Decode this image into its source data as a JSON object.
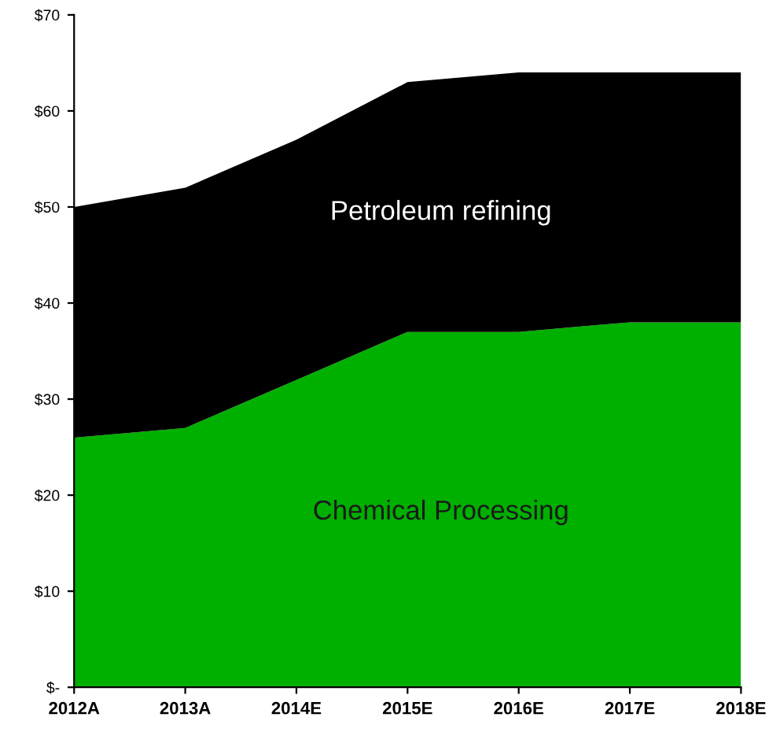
{
  "chart_data": {
    "type": "area",
    "stacked": true,
    "categories": [
      "2012A",
      "2013A",
      "2014E",
      "2015E",
      "2016E",
      "2017E",
      "2018E"
    ],
    "series": [
      {
        "name": "Chemical Processing",
        "color": "#00b000",
        "values": [
          26,
          27,
          32,
          37,
          37,
          38,
          38
        ]
      },
      {
        "name": "Petroleum refining",
        "color": "#000000",
        "values": [
          24,
          25,
          25,
          26,
          27,
          26,
          26
        ]
      }
    ],
    "ylim": [
      0,
      70
    ],
    "yticks": [
      {
        "value": 0,
        "label": "$-"
      },
      {
        "value": 10,
        "label": "$10"
      },
      {
        "value": 20,
        "label": "$20"
      },
      {
        "value": 30,
        "label": "$30"
      },
      {
        "value": 40,
        "label": "$40"
      },
      {
        "value": 50,
        "label": "$50"
      },
      {
        "value": 60,
        "label": "$60"
      },
      {
        "value": 70,
        "label": "$70"
      }
    ],
    "grid": false,
    "legend": false
  }
}
